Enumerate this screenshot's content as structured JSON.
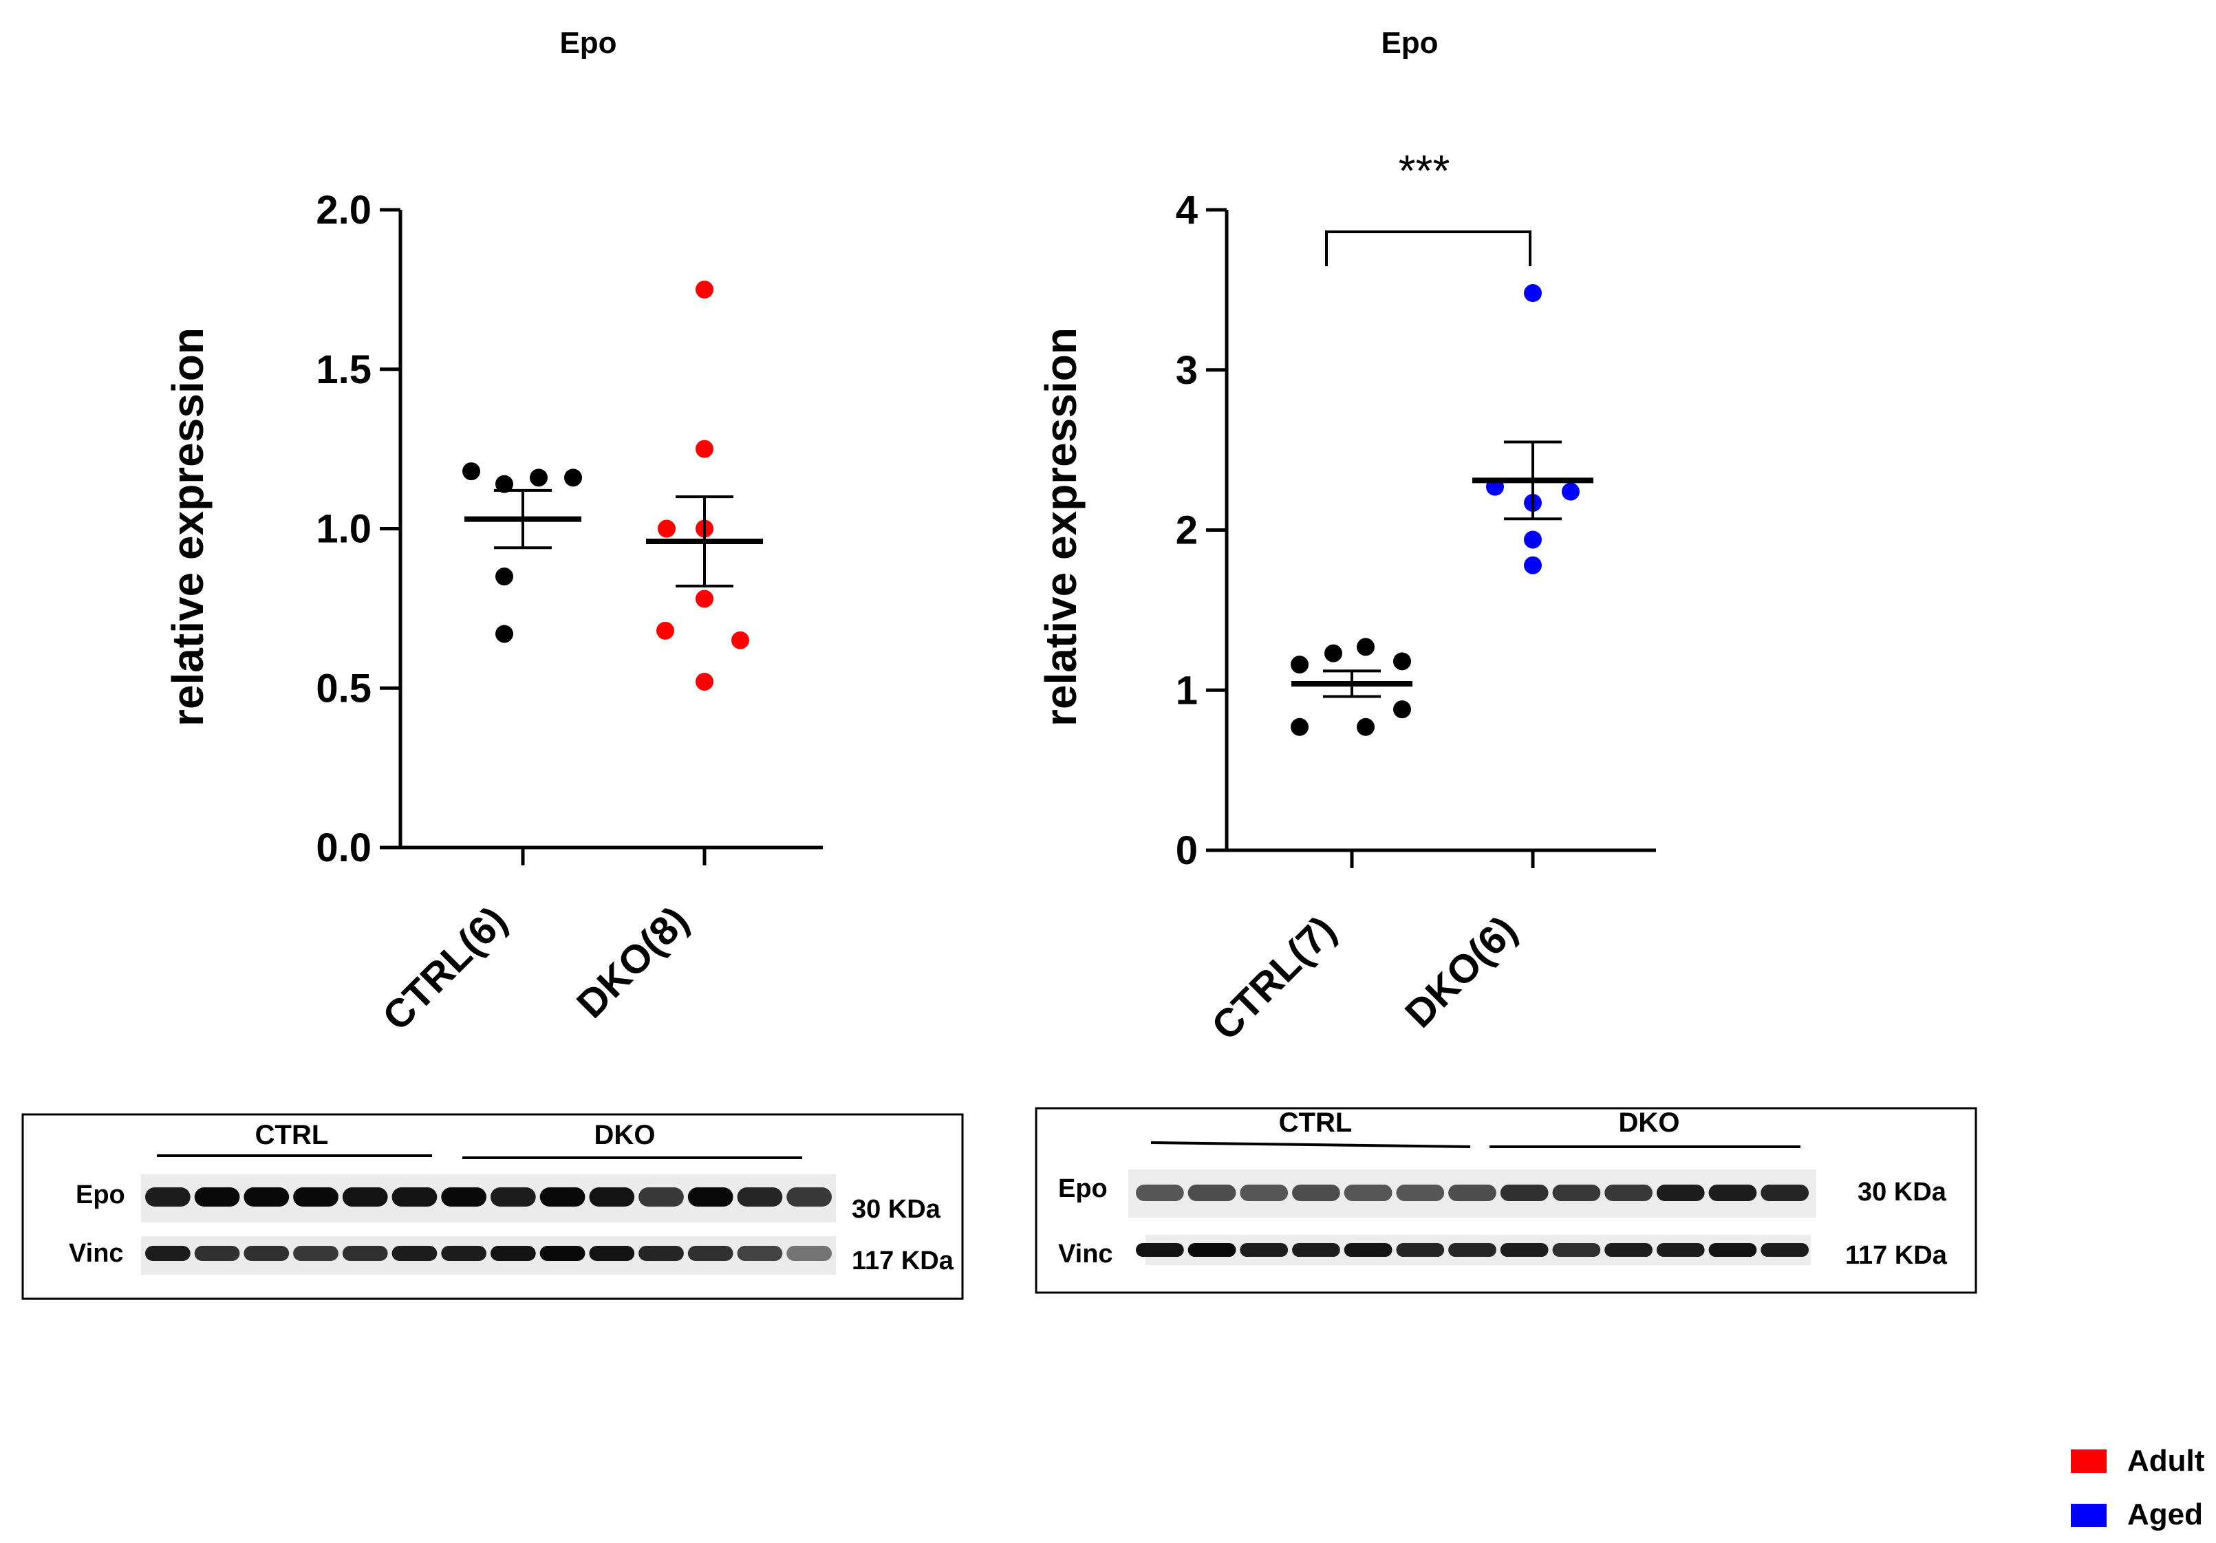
{
  "chart_data": [
    {
      "type": "scatter",
      "title": "Epo",
      "ylabel": "relative expression",
      "xlabel": "",
      "ylim": [
        0,
        2.0
      ],
      "yticks": [
        "0.0",
        "0.5",
        "1.0",
        "1.5",
        "2.0"
      ],
      "categories": [
        "CTRL(6)",
        "DKO(8)"
      ],
      "series": [
        {
          "name": "CTRL(6)",
          "color": "#000000",
          "values": [
            1.18,
            1.14,
            1.16,
            1.16,
            0.85,
            0.67
          ],
          "mean": 1.03,
          "sem": 0.09
        },
        {
          "name": "DKO(8)",
          "color": "#ff0000",
          "values": [
            1.75,
            1.25,
            1.0,
            1.0,
            0.78,
            0.68,
            0.65,
            0.52
          ],
          "mean": 0.96,
          "sem": 0.14
        }
      ]
    },
    {
      "type": "scatter",
      "title": "Epo",
      "ylabel": "relative expression",
      "xlabel": "",
      "ylim": [
        0,
        4
      ],
      "yticks": [
        "0",
        "1",
        "2",
        "3",
        "4"
      ],
      "categories": [
        "CTRL(7)",
        "DKO(6)"
      ],
      "significance": "***",
      "series": [
        {
          "name": "CTRL(7)",
          "color": "#000000",
          "values": [
            1.16,
            1.23,
            1.27,
            1.18,
            0.77,
            0.77,
            0.88
          ],
          "mean": 1.04,
          "sem": 0.08
        },
        {
          "name": "DKO(6)",
          "color": "#0000ff",
          "values": [
            3.48,
            2.27,
            2.24,
            2.17,
            1.94,
            1.78
          ],
          "mean": 2.31,
          "sem": 0.24
        }
      ]
    }
  ],
  "blots": [
    {
      "groups": [
        "CTRL",
        "DKO"
      ],
      "rows": [
        {
          "label": "Epo",
          "kda": "30 KDa",
          "intensities": [
            0.85,
            0.95,
            0.95,
            0.95,
            0.9,
            0.9,
            0.95,
            0.85,
            0.95,
            0.9,
            0.7,
            0.95,
            0.8,
            0.7
          ]
        },
        {
          "label": "Vinc",
          "kda": "117 KDa",
          "intensities": [
            0.85,
            0.75,
            0.75,
            0.7,
            0.75,
            0.85,
            0.85,
            0.9,
            0.95,
            0.9,
            0.8,
            0.75,
            0.65,
            0.4
          ]
        }
      ]
    },
    {
      "groups": [
        "CTRL",
        "DKO"
      ],
      "rows": [
        {
          "label": "Epo",
          "kda": "30 KDa",
          "intensities": [
            0.55,
            0.6,
            0.55,
            0.6,
            0.55,
            0.55,
            0.6,
            0.75,
            0.7,
            0.7,
            0.85,
            0.85,
            0.8
          ]
        },
        {
          "label": "Vinc",
          "kda": "117 KDa",
          "intensities": [
            0.9,
            0.95,
            0.85,
            0.85,
            0.9,
            0.8,
            0.8,
            0.85,
            0.75,
            0.85,
            0.85,
            0.9,
            0.85
          ]
        }
      ]
    }
  ],
  "legend": [
    {
      "label": "Adult",
      "color": "#ff0000"
    },
    {
      "label": "Aged",
      "color": "#0000ff"
    }
  ]
}
